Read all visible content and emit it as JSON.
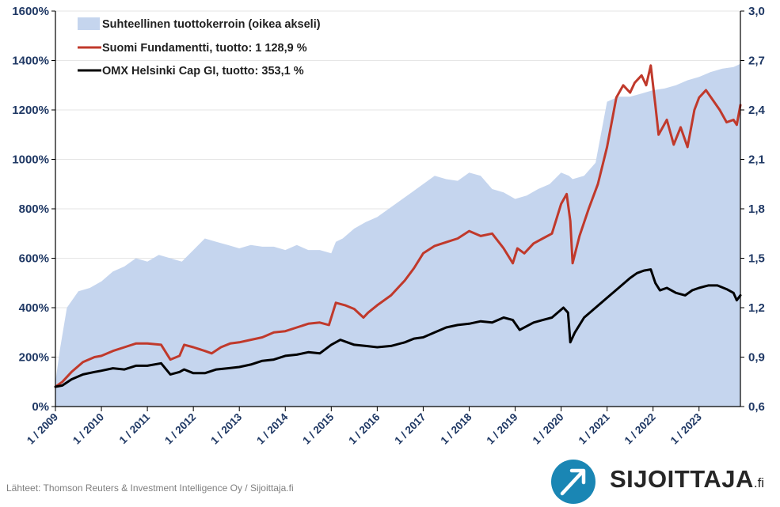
{
  "chart_data": {
    "type": "line",
    "title": "",
    "xlabel": "",
    "ylabel": "",
    "x_tick_labels": [
      "1 / 2009",
      "1 / 2010",
      "1 / 2011",
      "1 / 2012",
      "1 / 2013",
      "1 / 2014",
      "1 / 2015",
      "1 / 2016",
      "1 / 2017",
      "1 / 2018",
      "1 / 2019",
      "1 / 2020",
      "1 / 2021",
      "1 / 2022",
      "1 / 2023"
    ],
    "xlim": [
      2009.0,
      2023.9
    ],
    "y_left": {
      "ticks": [
        "0%",
        "200%",
        "400%",
        "600%",
        "800%",
        "1000%",
        "1200%",
        "1400%",
        "1600%"
      ],
      "ylim": [
        0,
        1600
      ]
    },
    "y_right": {
      "ticks": [
        "0,6",
        "0,9",
        "1,2",
        "1,5",
        "1,8",
        "2,1",
        "2,4",
        "2,7",
        "3,0"
      ],
      "ylim": [
        0.6,
        3.0
      ]
    },
    "legend_position": "top-left",
    "grid": true,
    "series": [
      {
        "name": "Suhteellinen tuottokerroin (oikea akseli)",
        "kind": "area",
        "axis": "right",
        "color": "#c5d5ee",
        "x": [
          2009.0,
          2009.1,
          2009.25,
          2009.5,
          2009.75,
          2010.0,
          2010.25,
          2010.5,
          2010.75,
          2011.0,
          2011.25,
          2011.5,
          2011.75,
          2012.0,
          2012.25,
          2012.5,
          2012.75,
          2013.0,
          2013.25,
          2013.5,
          2013.75,
          2014.0,
          2014.25,
          2014.5,
          2014.75,
          2015.0,
          2015.1,
          2015.25,
          2015.5,
          2015.75,
          2016.0,
          2016.25,
          2016.5,
          2016.75,
          2017.0,
          2017.25,
          2017.5,
          2017.75,
          2018.0,
          2018.25,
          2018.5,
          2018.75,
          2019.0,
          2019.25,
          2019.5,
          2019.75,
          2020.0,
          2020.17,
          2020.25,
          2020.5,
          2020.75,
          2021.0,
          2021.25,
          2021.5,
          2021.75,
          2022.0,
          2022.25,
          2022.5,
          2022.75,
          2023.0,
          2023.25,
          2023.5,
          2023.75,
          2023.9
        ],
        "values": [
          0.75,
          0.95,
          1.2,
          1.3,
          1.32,
          1.36,
          1.42,
          1.45,
          1.5,
          1.48,
          1.52,
          1.5,
          1.48,
          1.55,
          1.62,
          1.6,
          1.58,
          1.56,
          1.58,
          1.57,
          1.57,
          1.55,
          1.58,
          1.55,
          1.55,
          1.53,
          1.6,
          1.62,
          1.68,
          1.72,
          1.75,
          1.8,
          1.85,
          1.9,
          1.95,
          2.0,
          1.98,
          1.97,
          2.02,
          2.0,
          1.92,
          1.9,
          1.86,
          1.88,
          1.92,
          1.95,
          2.02,
          2.0,
          1.98,
          2.0,
          2.08,
          2.45,
          2.48,
          2.48,
          2.5,
          2.52,
          2.53,
          2.55,
          2.58,
          2.6,
          2.63,
          2.65,
          2.66,
          2.68
        ]
      },
      {
        "name": "Suomi Fundamentti, tuotto: 1 128,9 %",
        "kind": "line",
        "axis": "left",
        "color": "#c0392b",
        "x": [
          2009.0,
          2009.15,
          2009.35,
          2009.6,
          2009.85,
          2010.0,
          2010.25,
          2010.5,
          2010.75,
          2011.0,
          2011.3,
          2011.5,
          2011.7,
          2011.8,
          2012.0,
          2012.25,
          2012.4,
          2012.6,
          2012.8,
          2013.0,
          2013.25,
          2013.5,
          2013.75,
          2014.0,
          2014.25,
          2014.5,
          2014.75,
          2014.95,
          2015.1,
          2015.3,
          2015.5,
          2015.7,
          2015.8,
          2016.0,
          2016.3,
          2016.6,
          2016.8,
          2017.0,
          2017.25,
          2017.5,
          2017.75,
          2018.0,
          2018.25,
          2018.5,
          2018.75,
          2018.95,
          2019.05,
          2019.2,
          2019.4,
          2019.6,
          2019.8,
          2020.0,
          2020.12,
          2020.2,
          2020.25,
          2020.4,
          2020.6,
          2020.8,
          2021.0,
          2021.2,
          2021.35,
          2021.5,
          2021.6,
          2021.75,
          2021.85,
          2021.95,
          2022.05,
          2022.12,
          2022.3,
          2022.45,
          2022.6,
          2022.75,
          2022.9,
          2023.0,
          2023.15,
          2023.3,
          2023.45,
          2023.6,
          2023.75,
          2023.82,
          2023.9
        ],
        "values": [
          80,
          100,
          140,
          180,
          200,
          205,
          225,
          240,
          255,
          255,
          250,
          190,
          205,
          250,
          240,
          225,
          215,
          240,
          255,
          260,
          270,
          280,
          300,
          305,
          320,
          335,
          340,
          330,
          420,
          410,
          395,
          360,
          380,
          410,
          450,
          510,
          560,
          620,
          650,
          665,
          680,
          710,
          690,
          700,
          640,
          580,
          640,
          620,
          660,
          680,
          700,
          820,
          860,
          750,
          580,
          690,
          800,
          900,
          1050,
          1250,
          1300,
          1270,
          1310,
          1340,
          1300,
          1380,
          1220,
          1100,
          1160,
          1060,
          1130,
          1050,
          1200,
          1250,
          1280,
          1240,
          1200,
          1150,
          1160,
          1140,
          1220
        ]
      },
      {
        "name": "OMX Helsinki Cap GI, tuotto: 353,1 %",
        "kind": "line",
        "axis": "left",
        "color": "#000000",
        "x": [
          2009.0,
          2009.15,
          2009.35,
          2009.6,
          2009.85,
          2010.0,
          2010.25,
          2010.5,
          2010.75,
          2011.0,
          2011.3,
          2011.5,
          2011.7,
          2011.8,
          2012.0,
          2012.25,
          2012.5,
          2012.75,
          2013.0,
          2013.25,
          2013.5,
          2013.75,
          2014.0,
          2014.25,
          2014.5,
          2014.75,
          2015.0,
          2015.2,
          2015.35,
          2015.5,
          2015.75,
          2016.0,
          2016.3,
          2016.6,
          2016.8,
          2017.0,
          2017.25,
          2017.5,
          2017.75,
          2018.0,
          2018.25,
          2018.5,
          2018.75,
          2018.95,
          2019.1,
          2019.4,
          2019.6,
          2019.8,
          2020.05,
          2020.15,
          2020.2,
          2020.3,
          2020.5,
          2020.75,
          2021.0,
          2021.25,
          2021.5,
          2021.65,
          2021.8,
          2021.95,
          2022.05,
          2022.15,
          2022.3,
          2022.5,
          2022.7,
          2022.85,
          2023.0,
          2023.2,
          2023.4,
          2023.6,
          2023.75,
          2023.82,
          2023.9
        ],
        "values": [
          80,
          85,
          110,
          130,
          140,
          145,
          155,
          150,
          165,
          165,
          175,
          130,
          140,
          150,
          135,
          135,
          150,
          155,
          160,
          170,
          185,
          190,
          205,
          210,
          220,
          215,
          250,
          270,
          260,
          250,
          245,
          240,
          245,
          260,
          275,
          280,
          300,
          320,
          330,
          335,
          345,
          340,
          360,
          350,
          310,
          340,
          350,
          360,
          400,
          380,
          260,
          300,
          360,
          400,
          440,
          480,
          520,
          540,
          550,
          555,
          500,
          470,
          480,
          460,
          450,
          470,
          480,
          490,
          490,
          475,
          460,
          430,
          450
        ]
      }
    ]
  },
  "source_note": "Lähteet: Thomson Reuters & Investment Intelligence Oy / Sijoittaja.fi",
  "brand": {
    "name": "SIJOITTAJA",
    "tld": ".fi",
    "logo_color": "#1a86b4"
  }
}
